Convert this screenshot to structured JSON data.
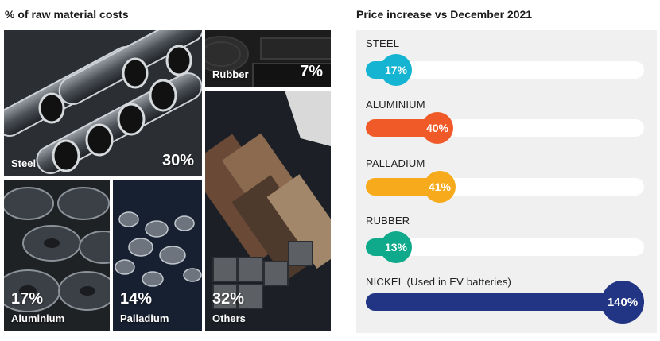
{
  "left_title": "% of raw material costs",
  "right_title": "Price increase vs December 2021",
  "tiles": [
    {
      "name": "Steel",
      "pct": "30%"
    },
    {
      "name": "Rubber",
      "pct": "7%"
    },
    {
      "name": "Aluminium",
      "pct": "17%"
    },
    {
      "name": "Palladium",
      "pct": "14%"
    },
    {
      "name": "Others",
      "pct": "32%"
    }
  ],
  "chart_data": [
    {
      "type": "treemap",
      "title": "% of raw material costs",
      "categories": [
        "Steel",
        "Rubber",
        "Aluminium",
        "Palladium",
        "Others"
      ],
      "values": [
        30,
        7,
        17,
        14,
        32
      ],
      "unit": "%"
    },
    {
      "type": "bar",
      "orientation": "horizontal",
      "title": "Price increase vs December 2021",
      "categories": [
        "STEEL",
        "ALUMINIUM",
        "PALLADIUM",
        "RUBBER",
        "NICKEL (Used in EV batteries)"
      ],
      "values": [
        17,
        40,
        41,
        13,
        140
      ],
      "value_labels": [
        "17%",
        "40%",
        "41%",
        "13%",
        "140%"
      ],
      "xlim": [
        0,
        140
      ],
      "colors": [
        "#14b4d2",
        "#f05a28",
        "#f7aa1c",
        "#0faa8c",
        "#213584"
      ]
    }
  ]
}
